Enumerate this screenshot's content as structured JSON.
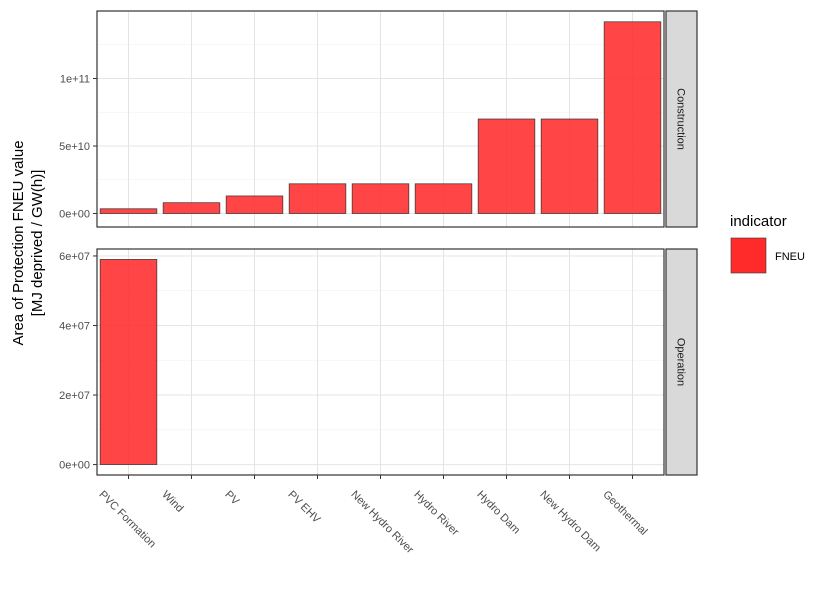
{
  "chart_data": {
    "type": "bar",
    "categories": [
      "PVC Formation",
      "Wind",
      "PV",
      "PV EHV",
      "New Hydro River",
      "Hydro River",
      "Hydro Dam",
      "New Hydro Dam",
      "Geothermal"
    ],
    "ylabel_lines": [
      "Area of Protection FNEU value",
      "[MJ deprived / GW(h)]"
    ],
    "legend": {
      "title": "indicator",
      "entries": [
        {
          "label": "FNEU",
          "color": "#ff2b2b"
        }
      ]
    },
    "bar_color": "#ff2b2b",
    "grid": true,
    "facets": [
      {
        "label": "Construction",
        "values": [
          3500000000.0,
          8000000000.0,
          13000000000.0,
          22000000000.0,
          22000000000.0,
          22000000000.0,
          70000000000.0,
          70000000000.0,
          142000000000.0
        ],
        "ylim": [
          -10000000000.0,
          150000000000.0
        ],
        "yticks": [
          0,
          50000000000.0,
          100000000000.0
        ],
        "ytick_labels": [
          "0e+00",
          "5e+10",
          "1e+11"
        ]
      },
      {
        "label": "Operation",
        "values": [
          59000000.0,
          0,
          0,
          0,
          0,
          0,
          0,
          0,
          0
        ],
        "ylim": [
          -3000000.0,
          62000000.0
        ],
        "yticks": [
          0,
          20000000.0,
          40000000.0,
          60000000.0
        ],
        "ytick_labels": [
          "0e+00",
          "2e+07",
          "4e+07",
          "6e+07"
        ]
      }
    ]
  }
}
